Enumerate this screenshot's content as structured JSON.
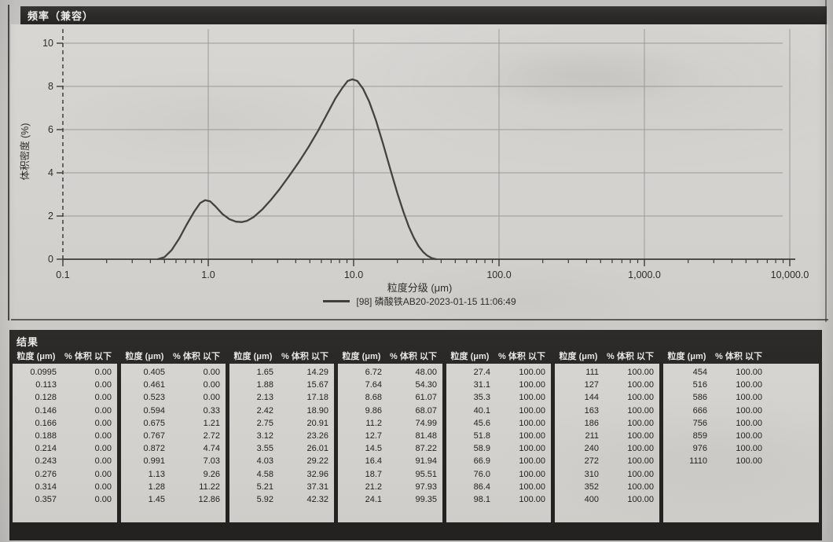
{
  "window": {
    "title": "频率（兼容）"
  },
  "chart_data": {
    "type": "line",
    "title": "频率（兼容）",
    "xlabel": "粒度分级 (μm)",
    "ylabel": "体积密度 (%)",
    "x_scale": "log",
    "xlim": [
      0.1,
      10000
    ],
    "ylim": [
      0,
      10
    ],
    "x_tick_values": [
      0.1,
      1,
      10,
      100,
      1000,
      10000
    ],
    "x_tick_labels": [
      "0.1",
      "1.0",
      "10.0",
      "100.0",
      "1,000.0",
      "10,000.0"
    ],
    "y_tick_values": [
      0,
      2,
      4,
      6,
      8,
      10
    ],
    "grid": true,
    "legend_position": "bottom-center",
    "series": [
      {
        "name": "[98] 磷酸铁AB20-2023-01-15 11:06:49",
        "color": "#45433f",
        "points": [
          [
            0.45,
            0
          ],
          [
            0.5,
            0.1
          ],
          [
            0.56,
            0.42
          ],
          [
            0.63,
            0.95
          ],
          [
            0.71,
            1.6
          ],
          [
            0.8,
            2.2
          ],
          [
            0.88,
            2.6
          ],
          [
            0.95,
            2.73
          ],
          [
            1.03,
            2.68
          ],
          [
            1.12,
            2.45
          ],
          [
            1.25,
            2.1
          ],
          [
            1.4,
            1.85
          ],
          [
            1.55,
            1.74
          ],
          [
            1.7,
            1.72
          ],
          [
            1.85,
            1.78
          ],
          [
            2.05,
            1.95
          ],
          [
            2.35,
            2.3
          ],
          [
            2.7,
            2.75
          ],
          [
            3.1,
            3.25
          ],
          [
            3.6,
            3.85
          ],
          [
            4.2,
            4.5
          ],
          [
            4.9,
            5.2
          ],
          [
            5.7,
            5.95
          ],
          [
            6.6,
            6.75
          ],
          [
            7.5,
            7.45
          ],
          [
            8.4,
            7.95
          ],
          [
            9.1,
            8.25
          ],
          [
            9.8,
            8.33
          ],
          [
            10.6,
            8.25
          ],
          [
            11.6,
            7.9
          ],
          [
            12.8,
            7.3
          ],
          [
            14.2,
            6.45
          ],
          [
            16.0,
            5.3
          ],
          [
            18.0,
            4.1
          ],
          [
            20.0,
            3.05
          ],
          [
            22.0,
            2.2
          ],
          [
            24.0,
            1.5
          ],
          [
            26.0,
            0.98
          ],
          [
            28.0,
            0.6
          ],
          [
            30.0,
            0.34
          ],
          [
            32.0,
            0.17
          ],
          [
            34.5,
            0.05
          ],
          [
            37.0,
            0
          ]
        ]
      }
    ]
  },
  "results": {
    "title": "结果",
    "size_header": "粒度 (μm)",
    "pct_header": "% 体积 以下",
    "groups": [
      [
        [
          "0.0995",
          "0.00"
        ],
        [
          "0.113",
          "0.00"
        ],
        [
          "0.128",
          "0.00"
        ],
        [
          "0.146",
          "0.00"
        ],
        [
          "0.166",
          "0.00"
        ],
        [
          "0.188",
          "0.00"
        ],
        [
          "0.214",
          "0.00"
        ],
        [
          "0.243",
          "0.00"
        ],
        [
          "0.276",
          "0.00"
        ],
        [
          "0.314",
          "0.00"
        ],
        [
          "0.357",
          "0.00"
        ]
      ],
      [
        [
          "0.405",
          "0.00"
        ],
        [
          "0.461",
          "0.00"
        ],
        [
          "0.523",
          "0.00"
        ],
        [
          "0.594",
          "0.33"
        ],
        [
          "0.675",
          "1.21"
        ],
        [
          "0.767",
          "2.72"
        ],
        [
          "0.872",
          "4.74"
        ],
        [
          "0.991",
          "7.03"
        ],
        [
          "1.13",
          "9.26"
        ],
        [
          "1.28",
          "11.22"
        ],
        [
          "1.45",
          "12.86"
        ]
      ],
      [
        [
          "1.65",
          "14.29"
        ],
        [
          "1.88",
          "15.67"
        ],
        [
          "2.13",
          "17.18"
        ],
        [
          "2.42",
          "18.90"
        ],
        [
          "2.75",
          "20.91"
        ],
        [
          "3.12",
          "23.26"
        ],
        [
          "3.55",
          "26.01"
        ],
        [
          "4.03",
          "29.22"
        ],
        [
          "4.58",
          "32.96"
        ],
        [
          "5.21",
          "37.31"
        ],
        [
          "5.92",
          "42.32"
        ]
      ],
      [
        [
          "6.72",
          "48.00"
        ],
        [
          "7.64",
          "54.30"
        ],
        [
          "8.68",
          "61.07"
        ],
        [
          "9.86",
          "68.07"
        ],
        [
          "11.2",
          "74.99"
        ],
        [
          "12.7",
          "81.48"
        ],
        [
          "14.5",
          "87.22"
        ],
        [
          "16.4",
          "91.94"
        ],
        [
          "18.7",
          "95.51"
        ],
        [
          "21.2",
          "97.93"
        ],
        [
          "24.1",
          "99.35"
        ]
      ],
      [
        [
          "27.4",
          "100.00"
        ],
        [
          "31.1",
          "100.00"
        ],
        [
          "35.3",
          "100.00"
        ],
        [
          "40.1",
          "100.00"
        ],
        [
          "45.6",
          "100.00"
        ],
        [
          "51.8",
          "100.00"
        ],
        [
          "58.9",
          "100.00"
        ],
        [
          "66.9",
          "100.00"
        ],
        [
          "76.0",
          "100.00"
        ],
        [
          "86.4",
          "100.00"
        ],
        [
          "98.1",
          "100.00"
        ]
      ],
      [
        [
          "111",
          "100.00"
        ],
        [
          "127",
          "100.00"
        ],
        [
          "144",
          "100.00"
        ],
        [
          "163",
          "100.00"
        ],
        [
          "186",
          "100.00"
        ],
        [
          "211",
          "100.00"
        ],
        [
          "240",
          "100.00"
        ],
        [
          "272",
          "100.00"
        ],
        [
          "310",
          "100.00"
        ],
        [
          "352",
          "100.00"
        ],
        [
          "400",
          "100.00"
        ]
      ],
      [
        [
          "454",
          "100.00"
        ],
        [
          "516",
          "100.00"
        ],
        [
          "586",
          "100.00"
        ],
        [
          "666",
          "100.00"
        ],
        [
          "756",
          "100.00"
        ],
        [
          "859",
          "100.00"
        ],
        [
          "976",
          "100.00"
        ],
        [
          "1110",
          "100.00"
        ]
      ]
    ]
  },
  "colors": {
    "header_bar": "#2d2b2a",
    "paper": "#cbc9c6",
    "panel_bg": "#d4d2cf",
    "table_bg": "#262524",
    "cell_bg": "#d2d0cc",
    "grid": "#9c9a98",
    "axis": "#3c3b39",
    "curve": "#45433f"
  }
}
